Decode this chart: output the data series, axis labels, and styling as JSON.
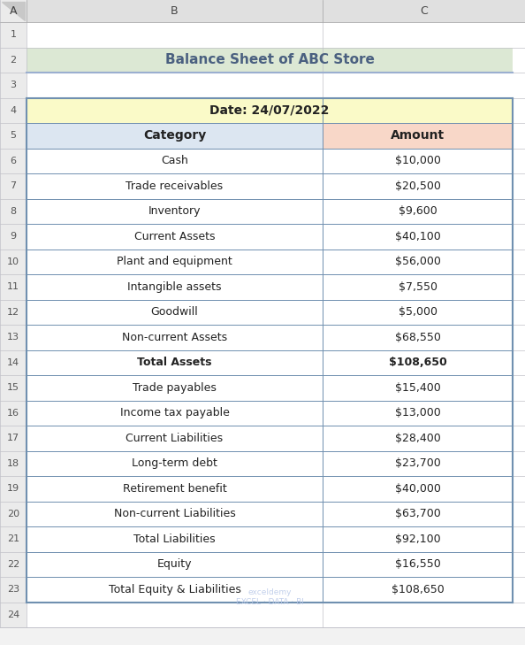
{
  "title": "Balance Sheet of ABC Store",
  "title_bg": "#dce8d4",
  "title_color": "#4a6080",
  "date_label": "Date: 24/07/2022",
  "date_bg": "#fafac8",
  "header_category": "Category",
  "header_amount": "Amount",
  "header_cat_bg": "#dce6f1",
  "header_amt_bg": "#f8d7c8",
  "rows": [
    {
      "label": "Cash",
      "value": "$10,000",
      "bold": false
    },
    {
      "label": "Trade receivables",
      "value": "$20,500",
      "bold": false
    },
    {
      "label": "Inventory",
      "value": "$9,600",
      "bold": false
    },
    {
      "label": "Current Assets",
      "value": "$40,100",
      "bold": false
    },
    {
      "label": "Plant and equipment",
      "value": "$56,000",
      "bold": false
    },
    {
      "label": "Intangible assets",
      "value": "$7,550",
      "bold": false
    },
    {
      "label": "Goodwill",
      "value": "$5,000",
      "bold": false
    },
    {
      "label": "Non-current Assets",
      "value": "$68,550",
      "bold": false
    },
    {
      "label": "Total Assets",
      "value": "$108,650",
      "bold": true
    },
    {
      "label": "Trade payables",
      "value": "$15,400",
      "bold": false
    },
    {
      "label": "Income tax payable",
      "value": "$13,000",
      "bold": false
    },
    {
      "label": "Current Liabilities",
      "value": "$28,400",
      "bold": false
    },
    {
      "label": "Long-term debt",
      "value": "$23,700",
      "bold": false
    },
    {
      "label": "Retirement benefit",
      "value": "$40,000",
      "bold": false
    },
    {
      "label": "Non-current Liabilities",
      "value": "$63,700",
      "bold": false
    },
    {
      "label": "Total Liabilities",
      "value": "$92,100",
      "bold": false
    },
    {
      "label": "Equity",
      "value": "$16,550",
      "bold": false
    },
    {
      "label": "Total Equity & Liabilities",
      "value": "$108,650",
      "bold": false
    }
  ],
  "fig_w": 5.94,
  "fig_h": 7.29,
  "dpi": 100,
  "excel_bg": "#f2f2f2",
  "col_header_bg": "#e0e0e0",
  "col_a_bg": "#ebebeb",
  "grid_line_color": "#c0c0c8",
  "thick_border_color": "#7090b0",
  "title_border_color": "#9bafd0",
  "watermark_color": "#b8c8e8",
  "font_size_title": 11,
  "font_size_data": 9,
  "font_size_row_num": 8,
  "font_size_col_header": 9
}
